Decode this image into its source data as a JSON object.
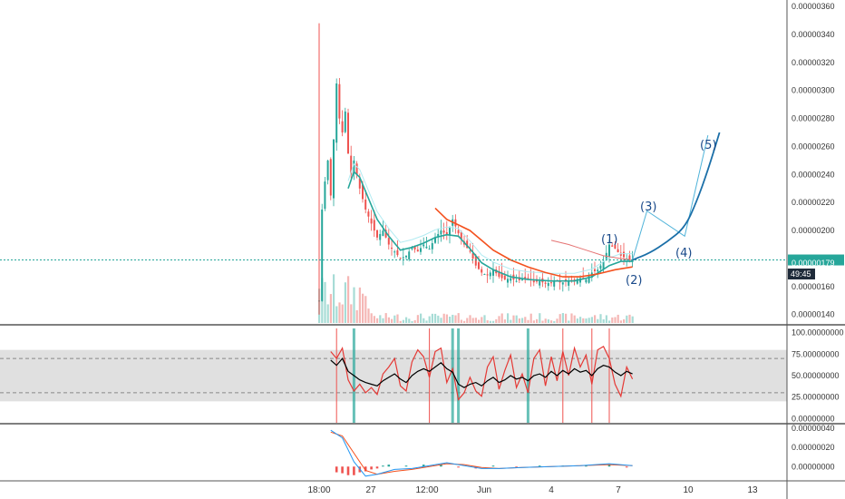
{
  "price_tag": {
    "value": "0.00000179",
    "countdown": "49:45"
  },
  "colors": {
    "up": "#26a69a",
    "down": "#ef5350",
    "ema_fast": "#26a69a",
    "ema_fast_band": "#b2ebf2",
    "ema_slow": "#f4511e",
    "ma_long": "#e57373",
    "rsi_line": "#000000",
    "rsi_signal": "#e53935",
    "rsi_band": "#d6d6d6",
    "price_line": "#26a69a",
    "wave_line": "#4fb3d9",
    "wave_curve": "#1b6fa8",
    "wave_label": "#1a4a8a",
    "grid_text": "#333333"
  },
  "chart_data": [
    {
      "type": "candlestick",
      "panel": "price",
      "y_ticks": [
        "0.00000360",
        "0.00000340",
        "0.00000320",
        "0.00000300",
        "0.00000280",
        "0.00000260",
        "0.00000240",
        "0.00000220",
        "0.00000200",
        "0.00000180",
        "0.00000160",
        "0.00000140"
      ],
      "ylim": [
        1.34e-06,
        3.62e-06
      ],
      "last_price": 1.79e-06,
      "close_path": [
        [
          0,
          1.5e-06
        ],
        [
          1,
          2.15e-06
        ],
        [
          2,
          2.35e-06
        ],
        [
          3,
          2.5e-06
        ],
        [
          4,
          2.25e-06
        ],
        [
          5,
          2.65e-06
        ],
        [
          6,
          3.05e-06
        ],
        [
          7,
          2.8e-06
        ],
        [
          8,
          2.7e-06
        ],
        [
          9,
          2.85e-06
        ],
        [
          10,
          2.55e-06
        ],
        [
          11,
          2.4e-06
        ],
        [
          12,
          2.5e-06
        ],
        [
          14,
          2.3e-06
        ],
        [
          16,
          2.15e-06
        ],
        [
          18,
          2.05e-06
        ],
        [
          20,
          1.95e-06
        ],
        [
          22,
          2e-06
        ],
        [
          24,
          1.9e-06
        ],
        [
          26,
          1.85e-06
        ],
        [
          28,
          1.8e-06
        ],
        [
          30,
          1.82e-06
        ],
        [
          32,
          1.88e-06
        ],
        [
          34,
          1.85e-06
        ],
        [
          36,
          1.9e-06
        ],
        [
          38,
          1.87e-06
        ],
        [
          40,
          1.95e-06
        ],
        [
          42,
          2e-06
        ],
        [
          44,
          1.97e-06
        ],
        [
          46,
          2.08e-06
        ],
        [
          48,
          1.98e-06
        ],
        [
          50,
          1.9e-06
        ],
        [
          52,
          1.85e-06
        ],
        [
          54,
          1.75e-06
        ],
        [
          56,
          1.7e-06
        ],
        [
          58,
          1.68e-06
        ],
        [
          60,
          1.72e-06
        ],
        [
          62,
          1.67e-06
        ],
        [
          64,
          1.65e-06
        ],
        [
          66,
          1.66e-06
        ],
        [
          68,
          1.64e-06
        ],
        [
          70,
          1.65e-06
        ],
        [
          72,
          1.66e-06
        ],
        [
          74,
          1.63e-06
        ],
        [
          76,
          1.64e-06
        ],
        [
          78,
          1.62e-06
        ],
        [
          80,
          1.63e-06
        ],
        [
          82,
          1.64e-06
        ],
        [
          84,
          1.63e-06
        ],
        [
          86,
          1.64e-06
        ],
        [
          88,
          1.65e-06
        ],
        [
          90,
          1.66e-06
        ],
        [
          92,
          1.65e-06
        ],
        [
          94,
          1.7e-06
        ],
        [
          96,
          1.72e-06
        ],
        [
          98,
          1.78e-06
        ],
        [
          100,
          1.9e-06
        ],
        [
          102,
          1.87e-06
        ],
        [
          104,
          1.82e-06
        ],
        [
          106,
          1.8e-06
        ],
        [
          108,
          1.79e-06
        ]
      ],
      "ema_fast": [
        [
          10,
          2.3e-06
        ],
        [
          12,
          2.42e-06
        ],
        [
          14,
          2.38e-06
        ],
        [
          16,
          2.28e-06
        ],
        [
          20,
          2.08e-06
        ],
        [
          24,
          1.96e-06
        ],
        [
          28,
          1.86e-06
        ],
        [
          32,
          1.88e-06
        ],
        [
          36,
          1.91e-06
        ],
        [
          40,
          1.95e-06
        ],
        [
          44,
          1.97e-06
        ],
        [
          48,
          1.96e-06
        ],
        [
          52,
          1.87e-06
        ],
        [
          56,
          1.77e-06
        ],
        [
          60,
          1.72e-06
        ],
        [
          66,
          1.67e-06
        ],
        [
          72,
          1.65e-06
        ],
        [
          80,
          1.64e-06
        ],
        [
          88,
          1.64e-06
        ],
        [
          94,
          1.67e-06
        ],
        [
          100,
          1.75e-06
        ],
        [
          104,
          1.78e-06
        ],
        [
          108,
          1.78e-06
        ]
      ],
      "ema_slow": [
        [
          40,
          2.16e-06
        ],
        [
          44,
          2.08e-06
        ],
        [
          48,
          2.04e-06
        ],
        [
          52,
          2e-06
        ],
        [
          56,
          1.93e-06
        ],
        [
          60,
          1.86e-06
        ],
        [
          66,
          1.79e-06
        ],
        [
          72,
          1.74e-06
        ],
        [
          78,
          1.7e-06
        ],
        [
          84,
          1.67e-06
        ],
        [
          90,
          1.67e-06
        ],
        [
          96,
          1.69e-06
        ],
        [
          102,
          1.72e-06
        ],
        [
          108,
          1.74e-06
        ]
      ],
      "ma_long": [
        [
          80,
          1.93e-06
        ],
        [
          86,
          1.9e-06
        ],
        [
          92,
          1.86e-06
        ],
        [
          98,
          1.82e-06
        ],
        [
          104,
          1.8e-06
        ],
        [
          108,
          1.79e-06
        ]
      ],
      "wave_labels": [
        "(1)",
        "(2)",
        "(3)",
        "(4)",
        "(5)"
      ],
      "wave_points": [
        [
          108,
          1.79e-06
        ],
        [
          113,
          2.14e-06
        ],
        [
          126,
          1.96e-06
        ],
        [
          134,
          2.68e-06
        ]
      ],
      "wave_curve": [
        [
          108,
          1.79e-06
        ],
        [
          114,
          1.84e-06
        ],
        [
          120,
          1.92e-06
        ],
        [
          126,
          2.02e-06
        ],
        [
          130,
          2.2e-06
        ],
        [
          134,
          2.43e-06
        ],
        [
          138,
          2.7e-06
        ]
      ]
    },
    {
      "type": "line",
      "panel": "rsi",
      "y_ticks": [
        "100.00000000",
        "75.00000000",
        "50.00000000",
        "25.00000000",
        "0.00000000"
      ],
      "ylim": [
        -5,
        105
      ],
      "band": [
        20,
        80
      ],
      "levels": [
        70,
        30
      ],
      "rsi": [
        [
          4,
          68
        ],
        [
          6,
          62
        ],
        [
          8,
          70
        ],
        [
          10,
          55
        ],
        [
          12,
          50
        ],
        [
          14,
          45
        ],
        [
          16,
          42
        ],
        [
          18,
          40
        ],
        [
          20,
          38
        ],
        [
          22,
          44
        ],
        [
          24,
          48
        ],
        [
          26,
          52
        ],
        [
          28,
          46
        ],
        [
          30,
          42
        ],
        [
          32,
          50
        ],
        [
          34,
          55
        ],
        [
          36,
          58
        ],
        [
          38,
          55
        ],
        [
          40,
          60
        ],
        [
          42,
          65
        ],
        [
          44,
          58
        ],
        [
          46,
          54
        ],
        [
          48,
          40
        ],
        [
          50,
          36
        ],
        [
          52,
          40
        ],
        [
          54,
          42
        ],
        [
          56,
          38
        ],
        [
          58,
          44
        ],
        [
          60,
          48
        ],
        [
          62,
          42
        ],
        [
          64,
          45
        ],
        [
          66,
          50
        ],
        [
          68,
          46
        ],
        [
          70,
          48
        ],
        [
          72,
          44
        ],
        [
          74,
          50
        ],
        [
          76,
          52
        ],
        [
          78,
          48
        ],
        [
          80,
          55
        ],
        [
          82,
          50
        ],
        [
          84,
          56
        ],
        [
          86,
          52
        ],
        [
          88,
          58
        ],
        [
          90,
          54
        ],
        [
          92,
          56
        ],
        [
          94,
          50
        ],
        [
          96,
          58
        ],
        [
          98,
          62
        ],
        [
          100,
          60
        ],
        [
          102,
          54
        ],
        [
          104,
          50
        ],
        [
          106,
          55
        ],
        [
          108,
          52
        ]
      ],
      "rsi_fast": [
        [
          4,
          78
        ],
        [
          6,
          70
        ],
        [
          8,
          82
        ],
        [
          10,
          45
        ],
        [
          12,
          32
        ],
        [
          14,
          40
        ],
        [
          16,
          30
        ],
        [
          18,
          36
        ],
        [
          20,
          28
        ],
        [
          22,
          52
        ],
        [
          24,
          60
        ],
        [
          26,
          70
        ],
        [
          28,
          38
        ],
        [
          30,
          32
        ],
        [
          32,
          66
        ],
        [
          34,
          80
        ],
        [
          36,
          72
        ],
        [
          38,
          48
        ],
        [
          40,
          78
        ],
        [
          42,
          82
        ],
        [
          44,
          42
        ],
        [
          46,
          58
        ],
        [
          48,
          22
        ],
        [
          50,
          30
        ],
        [
          52,
          48
        ],
        [
          54,
          32
        ],
        [
          56,
          26
        ],
        [
          58,
          60
        ],
        [
          60,
          72
        ],
        [
          62,
          34
        ],
        [
          64,
          56
        ],
        [
          66,
          74
        ],
        [
          68,
          36
        ],
        [
          70,
          52
        ],
        [
          72,
          30
        ],
        [
          74,
          70
        ],
        [
          76,
          80
        ],
        [
          78,
          38
        ],
        [
          80,
          72
        ],
        [
          82,
          44
        ],
        [
          84,
          78
        ],
        [
          86,
          50
        ],
        [
          88,
          82
        ],
        [
          90,
          60
        ],
        [
          92,
          74
        ],
        [
          94,
          40
        ],
        [
          96,
          80
        ],
        [
          98,
          84
        ],
        [
          100,
          70
        ],
        [
          102,
          40
        ],
        [
          104,
          26
        ],
        [
          106,
          60
        ],
        [
          108,
          46
        ]
      ],
      "spikes_up": [
        12,
        46,
        48,
        72
      ],
      "spikes_down": [
        6,
        38,
        84,
        94,
        100
      ]
    },
    {
      "type": "line",
      "panel": "macd",
      "y_ticks": [
        "0.00000040",
        "0.00000020",
        "0.00000000"
      ],
      "ylim": [
        -1.4e-07,
        4.2e-07
      ],
      "macd": [
        [
          4,
          3.8e-07
        ],
        [
          8,
          3e-07
        ],
        [
          12,
          5e-08
        ],
        [
          16,
          -1e-07
        ],
        [
          20,
          -8e-08
        ],
        [
          26,
          -3e-08
        ],
        [
          32,
          -2e-08
        ],
        [
          38,
          1e-08
        ],
        [
          44,
          4e-08
        ],
        [
          50,
          1e-08
        ],
        [
          56,
          -2e-08
        ],
        [
          62,
          -2e-08
        ],
        [
          70,
          -1e-08
        ],
        [
          80,
          0.0
        ],
        [
          90,
          1e-08
        ],
        [
          100,
          3e-08
        ],
        [
          108,
          1e-08
        ]
      ],
      "signal": [
        [
          4,
          3.6e-07
        ],
        [
          8,
          3.2e-07
        ],
        [
          12,
          1.4e-07
        ],
        [
          16,
          -4e-08
        ],
        [
          20,
          -8e-08
        ],
        [
          26,
          -5e-08
        ],
        [
          32,
          -3e-08
        ],
        [
          38,
          0.0
        ],
        [
          44,
          3e-08
        ],
        [
          50,
          2e-08
        ],
        [
          56,
          -1e-08
        ],
        [
          62,
          -2e-08
        ],
        [
          70,
          -1e-08
        ],
        [
          80,
          0.0
        ],
        [
          90,
          1e-08
        ],
        [
          100,
          2e-08
        ],
        [
          108,
          1e-08
        ]
      ],
      "hist": [
        [
          6,
          -6e-08
        ],
        [
          8,
          -7e-08
        ],
        [
          10,
          -9e-08
        ],
        [
          12,
          -9e-08
        ],
        [
          14,
          -6e-08
        ],
        [
          16,
          -5e-08
        ],
        [
          18,
          -3e-08
        ],
        [
          20,
          -2e-08
        ],
        [
          22,
          1e-08
        ],
        [
          24,
          2e-08
        ],
        [
          30,
          1e-08
        ],
        [
          36,
          2e-08
        ],
        [
          42,
          2e-08
        ],
        [
          48,
          -1e-08
        ],
        [
          54,
          -2e-08
        ],
        [
          60,
          1e-08
        ],
        [
          68,
          -1e-08
        ],
        [
          76,
          1e-08
        ],
        [
          84,
          1e-08
        ],
        [
          92,
          1e-08
        ],
        [
          100,
          2e-08
        ],
        [
          106,
          -1e-08
        ]
      ]
    }
  ],
  "x_axis": {
    "ticks": [
      "18:00",
      "27",
      "12:00",
      "Jun",
      "4",
      "7",
      "10",
      "13"
    ]
  }
}
